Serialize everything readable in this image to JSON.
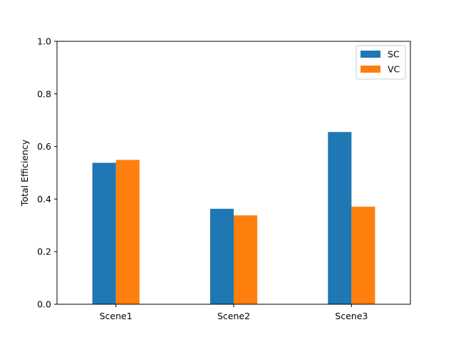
{
  "chart_data": {
    "type": "bar",
    "title": "",
    "xlabel": "",
    "ylabel": "Total Efficiency",
    "categories": [
      "Scene1",
      "Scene2",
      "Scene3"
    ],
    "series": [
      {
        "name": "SC",
        "color": "#1f77b4",
        "values": [
          0.538,
          0.363,
          0.655
        ]
      },
      {
        "name": "VC",
        "color": "#ff7f0e",
        "values": [
          0.549,
          0.338,
          0.371
        ]
      }
    ],
    "ylim": [
      0,
      1.0
    ],
    "yticks": [
      "0.0",
      "0.2",
      "0.4",
      "0.6",
      "0.8",
      "1.0"
    ],
    "grid": false,
    "legend_position": "top-right"
  }
}
